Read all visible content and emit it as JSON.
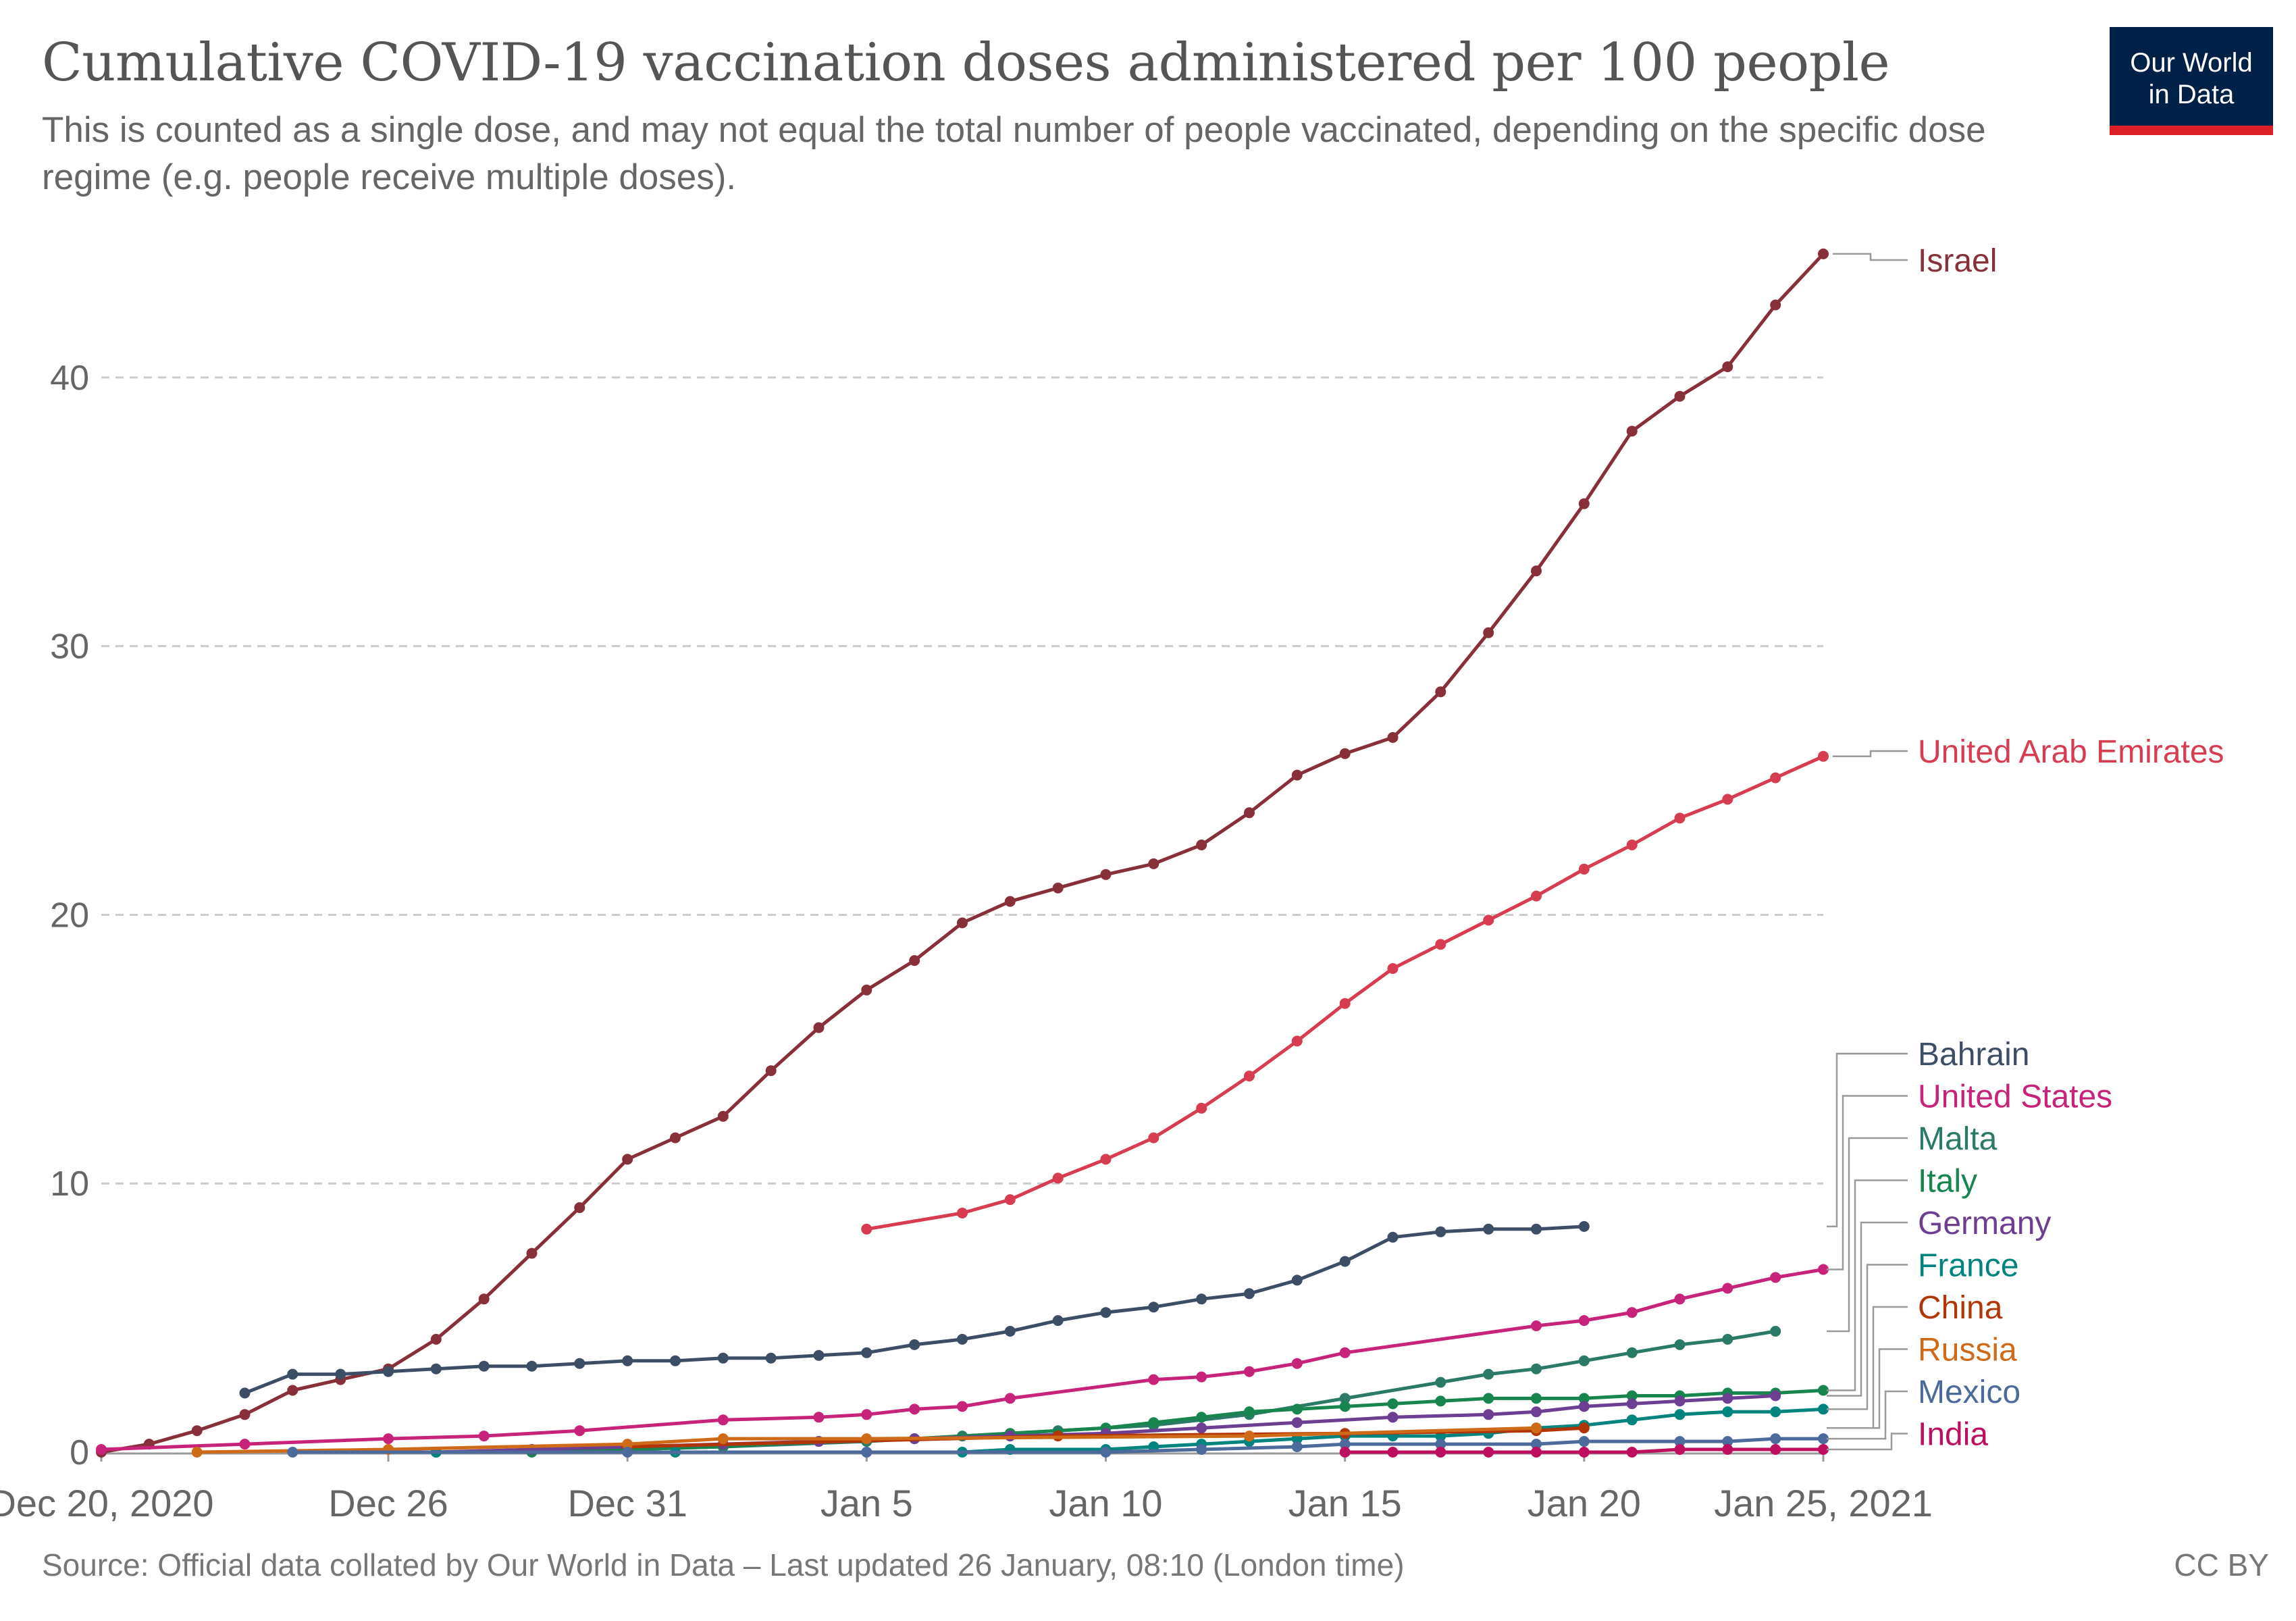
{
  "header": {
    "title": "Cumulative COVID-19 vaccination doses administered per 100 people",
    "subtitle": "This is counted as a single dose, and may not equal the total number of people vaccinated, depending on the specific dose regime (e.g. people receive multiple doses)."
  },
  "logo": {
    "line1": "Our World",
    "line2": "in Data"
  },
  "footer": {
    "source": "Source: Official data collated by Our World in Data – Last updated 26 January, 08:10 (London time)",
    "license": "CC BY"
  },
  "colors": {
    "gridline": "#cccccc",
    "axis": "#666666",
    "logo_bg": "#002147",
    "logo_accent": "#dc1f27"
  },
  "chart_data": {
    "type": "line",
    "title": "Cumulative COVID-19 vaccination doses administered per 100 people",
    "xlabel": "",
    "ylabel": "",
    "x_start": "2020-12-20",
    "x_end": "2021-01-25",
    "xticks": [
      {
        "date": "2020-12-20",
        "label": "Dec 20, 2020"
      },
      {
        "date": "2020-12-26",
        "label": "Dec 26"
      },
      {
        "date": "2020-12-31",
        "label": "Dec 31"
      },
      {
        "date": "2021-01-05",
        "label": "Jan 5"
      },
      {
        "date": "2021-01-10",
        "label": "Jan 10"
      },
      {
        "date": "2021-01-15",
        "label": "Jan 15"
      },
      {
        "date": "2021-01-20",
        "label": "Jan 20"
      },
      {
        "date": "2021-01-25",
        "label": "Jan 25, 2021"
      }
    ],
    "ylim": [
      0,
      45
    ],
    "yticks": [
      0,
      10,
      20,
      30,
      40
    ],
    "grid": true,
    "legend": "labels at line ends (right)",
    "series": [
      {
        "name": "Israel",
        "color": "#883039",
        "points": [
          [
            "2020-12-20",
            0.0
          ],
          [
            "2020-12-21",
            0.3
          ],
          [
            "2020-12-22",
            0.8
          ],
          [
            "2020-12-23",
            1.4
          ],
          [
            "2020-12-24",
            2.3
          ],
          [
            "2020-12-25",
            2.7
          ],
          [
            "2020-12-26",
            3.1
          ],
          [
            "2020-12-27",
            4.2
          ],
          [
            "2020-12-28",
            5.7
          ],
          [
            "2020-12-29",
            7.4
          ],
          [
            "2020-12-30",
            9.1
          ],
          [
            "2020-12-31",
            10.9
          ],
          [
            "2021-01-01",
            11.7
          ],
          [
            "2021-01-02",
            12.5
          ],
          [
            "2021-01-03",
            14.2
          ],
          [
            "2021-01-04",
            15.8
          ],
          [
            "2021-01-05",
            17.2
          ],
          [
            "2021-01-06",
            18.3
          ],
          [
            "2021-01-07",
            19.7
          ],
          [
            "2021-01-08",
            20.5
          ],
          [
            "2021-01-09",
            21.0
          ],
          [
            "2021-01-10",
            21.5
          ],
          [
            "2021-01-11",
            21.9
          ],
          [
            "2021-01-12",
            22.6
          ],
          [
            "2021-01-13",
            23.8
          ],
          [
            "2021-01-14",
            25.2
          ],
          [
            "2021-01-15",
            26.0
          ],
          [
            "2021-01-16",
            26.6
          ],
          [
            "2021-01-17",
            28.3
          ],
          [
            "2021-01-18",
            30.5
          ],
          [
            "2021-01-19",
            32.8
          ],
          [
            "2021-01-20",
            35.3
          ],
          [
            "2021-01-21",
            38.0
          ],
          [
            "2021-01-22",
            39.3
          ],
          [
            "2021-01-23",
            40.4
          ],
          [
            "2021-01-24",
            42.7
          ],
          [
            "2021-01-25",
            44.6
          ]
        ]
      },
      {
        "name": "United Arab Emirates",
        "color": "#d73c50",
        "points": [
          [
            "2021-01-05",
            8.3
          ],
          [
            "2021-01-07",
            8.9
          ],
          [
            "2021-01-08",
            9.4
          ],
          [
            "2021-01-09",
            10.2
          ],
          [
            "2021-01-10",
            10.9
          ],
          [
            "2021-01-11",
            11.7
          ],
          [
            "2021-01-12",
            12.8
          ],
          [
            "2021-01-13",
            14.0
          ],
          [
            "2021-01-14",
            15.3
          ],
          [
            "2021-01-15",
            16.7
          ],
          [
            "2021-01-16",
            18.0
          ],
          [
            "2021-01-17",
            18.9
          ],
          [
            "2021-01-18",
            19.8
          ],
          [
            "2021-01-19",
            20.7
          ],
          [
            "2021-01-20",
            21.7
          ],
          [
            "2021-01-21",
            22.6
          ],
          [
            "2021-01-22",
            23.6
          ],
          [
            "2021-01-23",
            24.3
          ],
          [
            "2021-01-24",
            25.1
          ],
          [
            "2021-01-25",
            25.9
          ]
        ]
      },
      {
        "name": "Bahrain",
        "color": "#3c4e66",
        "points": [
          [
            "2020-12-23",
            2.2
          ],
          [
            "2020-12-24",
            2.9
          ],
          [
            "2020-12-25",
            2.9
          ],
          [
            "2020-12-26",
            3.0
          ],
          [
            "2020-12-27",
            3.1
          ],
          [
            "2020-12-28",
            3.2
          ],
          [
            "2020-12-29",
            3.2
          ],
          [
            "2020-12-30",
            3.3
          ],
          [
            "2020-12-31",
            3.4
          ],
          [
            "2021-01-01",
            3.4
          ],
          [
            "2021-01-02",
            3.5
          ],
          [
            "2021-01-03",
            3.5
          ],
          [
            "2021-01-04",
            3.6
          ],
          [
            "2021-01-05",
            3.7
          ],
          [
            "2021-01-06",
            4.0
          ],
          [
            "2021-01-07",
            4.2
          ],
          [
            "2021-01-08",
            4.5
          ],
          [
            "2021-01-09",
            4.9
          ],
          [
            "2021-01-10",
            5.2
          ],
          [
            "2021-01-11",
            5.4
          ],
          [
            "2021-01-12",
            5.7
          ],
          [
            "2021-01-13",
            5.9
          ],
          [
            "2021-01-14",
            6.4
          ],
          [
            "2021-01-15",
            7.1
          ],
          [
            "2021-01-16",
            8.0
          ],
          [
            "2021-01-17",
            8.2
          ],
          [
            "2021-01-18",
            8.3
          ],
          [
            "2021-01-19",
            8.3
          ],
          [
            "2021-01-20",
            8.4
          ]
        ]
      },
      {
        "name": "United States",
        "color": "#c7237b",
        "points": [
          [
            "2020-12-20",
            0.1
          ],
          [
            "2020-12-23",
            0.3
          ],
          [
            "2020-12-26",
            0.5
          ],
          [
            "2020-12-28",
            0.6
          ],
          [
            "2020-12-30",
            0.8
          ],
          [
            "2021-01-02",
            1.2
          ],
          [
            "2021-01-04",
            1.3
          ],
          [
            "2021-01-05",
            1.4
          ],
          [
            "2021-01-06",
            1.6
          ],
          [
            "2021-01-07",
            1.7
          ],
          [
            "2021-01-08",
            2.0
          ],
          [
            "2021-01-11",
            2.7
          ],
          [
            "2021-01-12",
            2.8
          ],
          [
            "2021-01-13",
            3.0
          ],
          [
            "2021-01-14",
            3.3
          ],
          [
            "2021-01-15",
            3.7
          ],
          [
            "2021-01-19",
            4.7
          ],
          [
            "2021-01-20",
            4.9
          ],
          [
            "2021-01-21",
            5.2
          ],
          [
            "2021-01-22",
            5.7
          ],
          [
            "2021-01-23",
            6.1
          ],
          [
            "2021-01-24",
            6.5
          ],
          [
            "2021-01-25",
            6.8
          ]
        ]
      },
      {
        "name": "Malta",
        "color": "#2b7a68",
        "points": [
          [
            "2020-12-27",
            0.0
          ],
          [
            "2020-12-31",
            0.1
          ],
          [
            "2021-01-02",
            0.2
          ],
          [
            "2021-01-05",
            0.4
          ],
          [
            "2021-01-07",
            0.6
          ],
          [
            "2021-01-09",
            0.8
          ],
          [
            "2021-01-11",
            1.0
          ],
          [
            "2021-01-13",
            1.4
          ],
          [
            "2021-01-15",
            2.0
          ],
          [
            "2021-01-17",
            2.6
          ],
          [
            "2021-01-18",
            2.9
          ],
          [
            "2021-01-19",
            3.1
          ],
          [
            "2021-01-20",
            3.4
          ],
          [
            "2021-01-21",
            3.7
          ],
          [
            "2021-01-22",
            4.0
          ],
          [
            "2021-01-23",
            4.2
          ],
          [
            "2021-01-24",
            4.5
          ]
        ]
      },
      {
        "name": "Italy",
        "color": "#18854f",
        "points": [
          [
            "2020-12-27",
            0.0
          ],
          [
            "2020-12-29",
            0.0
          ],
          [
            "2020-12-31",
            0.1
          ],
          [
            "2021-01-02",
            0.2
          ],
          [
            "2021-01-04",
            0.4
          ],
          [
            "2021-01-06",
            0.5
          ],
          [
            "2021-01-08",
            0.7
          ],
          [
            "2021-01-10",
            0.9
          ],
          [
            "2021-01-11",
            1.1
          ],
          [
            "2021-01-12",
            1.3
          ],
          [
            "2021-01-13",
            1.5
          ],
          [
            "2021-01-14",
            1.6
          ],
          [
            "2021-01-15",
            1.7
          ],
          [
            "2021-01-16",
            1.8
          ],
          [
            "2021-01-17",
            1.9
          ],
          [
            "2021-01-18",
            2.0
          ],
          [
            "2021-01-19",
            2.0
          ],
          [
            "2021-01-20",
            2.0
          ],
          [
            "2021-01-21",
            2.1
          ],
          [
            "2021-01-22",
            2.1
          ],
          [
            "2021-01-23",
            2.2
          ],
          [
            "2021-01-24",
            2.2
          ],
          [
            "2021-01-25",
            2.3
          ]
        ]
      },
      {
        "name": "Germany",
        "color": "#6d3e91",
        "points": [
          [
            "2020-12-27",
            0.0
          ],
          [
            "2020-12-29",
            0.1
          ],
          [
            "2020-12-31",
            0.2
          ],
          [
            "2021-01-02",
            0.3
          ],
          [
            "2021-01-04",
            0.4
          ],
          [
            "2021-01-06",
            0.5
          ],
          [
            "2021-01-08",
            0.6
          ],
          [
            "2021-01-10",
            0.7
          ],
          [
            "2021-01-12",
            0.9
          ],
          [
            "2021-01-14",
            1.1
          ],
          [
            "2021-01-16",
            1.3
          ],
          [
            "2021-01-18",
            1.4
          ],
          [
            "2021-01-19",
            1.5
          ],
          [
            "2021-01-20",
            1.7
          ],
          [
            "2021-01-21",
            1.8
          ],
          [
            "2021-01-22",
            1.9
          ],
          [
            "2021-01-23",
            2.0
          ],
          [
            "2021-01-24",
            2.1
          ]
        ]
      },
      {
        "name": "France",
        "color": "#00847e",
        "points": [
          [
            "2020-12-27",
            0.0
          ],
          [
            "2021-01-01",
            0.0
          ],
          [
            "2021-01-05",
            0.0
          ],
          [
            "2021-01-07",
            0.0
          ],
          [
            "2021-01-08",
            0.1
          ],
          [
            "2021-01-10",
            0.1
          ],
          [
            "2021-01-11",
            0.2
          ],
          [
            "2021-01-12",
            0.3
          ],
          [
            "2021-01-13",
            0.4
          ],
          [
            "2021-01-14",
            0.5
          ],
          [
            "2021-01-15",
            0.6
          ],
          [
            "2021-01-16",
            0.6
          ],
          [
            "2021-01-17",
            0.6
          ],
          [
            "2021-01-18",
            0.7
          ],
          [
            "2021-01-19",
            0.9
          ],
          [
            "2021-01-20",
            1.0
          ],
          [
            "2021-01-21",
            1.2
          ],
          [
            "2021-01-22",
            1.4
          ],
          [
            "2021-01-23",
            1.5
          ],
          [
            "2021-01-24",
            1.5
          ],
          [
            "2021-01-25",
            1.6
          ]
        ]
      },
      {
        "name": "China",
        "color": "#b13507",
        "points": [
          [
            "2020-12-31",
            0.2
          ],
          [
            "2021-01-09",
            0.6
          ],
          [
            "2021-01-15",
            0.7
          ],
          [
            "2021-01-19",
            0.8
          ],
          [
            "2021-01-20",
            0.9
          ]
        ]
      },
      {
        "name": "Russia",
        "color": "#cf6a19",
        "points": [
          [
            "2020-12-22",
            0.0
          ],
          [
            "2020-12-26",
            0.1
          ],
          [
            "2020-12-31",
            0.3
          ],
          [
            "2021-01-02",
            0.5
          ],
          [
            "2021-01-05",
            0.5
          ],
          [
            "2021-01-13",
            0.6
          ],
          [
            "2021-01-19",
            0.9
          ]
        ]
      },
      {
        "name": "Mexico",
        "color": "#4c6a9c",
        "points": [
          [
            "2020-12-24",
            0.0
          ],
          [
            "2020-12-31",
            0.0
          ],
          [
            "2021-01-05",
            0.0
          ],
          [
            "2021-01-10",
            0.0
          ],
          [
            "2021-01-12",
            0.1
          ],
          [
            "2021-01-14",
            0.2
          ],
          [
            "2021-01-15",
            0.3
          ],
          [
            "2021-01-17",
            0.3
          ],
          [
            "2021-01-19",
            0.3
          ],
          [
            "2021-01-20",
            0.4
          ],
          [
            "2021-01-22",
            0.4
          ],
          [
            "2021-01-23",
            0.4
          ],
          [
            "2021-01-24",
            0.5
          ],
          [
            "2021-01-25",
            0.5
          ]
        ]
      },
      {
        "name": "India",
        "color": "#be0e5f",
        "points": [
          [
            "2021-01-15",
            0.0
          ],
          [
            "2021-01-16",
            0.0
          ],
          [
            "2021-01-17",
            0.0
          ],
          [
            "2021-01-18",
            0.0
          ],
          [
            "2021-01-19",
            0.0
          ],
          [
            "2021-01-20",
            0.0
          ],
          [
            "2021-01-21",
            0.0
          ],
          [
            "2021-01-22",
            0.1
          ],
          [
            "2021-01-23",
            0.1
          ],
          [
            "2021-01-24",
            0.1
          ],
          [
            "2021-01-25",
            0.1
          ]
        ]
      }
    ]
  }
}
